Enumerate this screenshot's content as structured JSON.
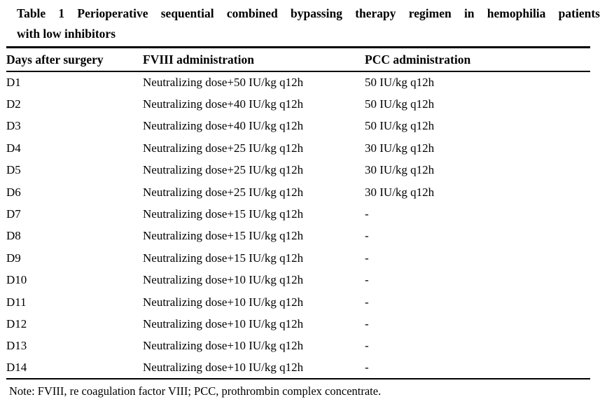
{
  "document": {
    "caption_line1": "Table 1 Perioperative sequential combined bypassing therapy regimen in hemophilia patients",
    "caption_line2": "with low inhibitors",
    "note": "Note: FVIII, re coagulation factor VIII; PCC, prothrombin complex concentrate."
  },
  "table": {
    "columns": [
      {
        "key": "day",
        "label": "Days after surgery"
      },
      {
        "key": "fviii",
        "label": "FVIII administration"
      },
      {
        "key": "pcc",
        "label": "PCC administration"
      }
    ],
    "rows": [
      {
        "day": "D1",
        "fviii": "Neutralizing dose+50 IU/kg q12h",
        "pcc": "50 IU/kg q12h"
      },
      {
        "day": "D2",
        "fviii": "Neutralizing dose+40 IU/kg q12h",
        "pcc": "50 IU/kg q12h"
      },
      {
        "day": "D3",
        "fviii": "Neutralizing dose+40 IU/kg q12h",
        "pcc": "50 IU/kg q12h"
      },
      {
        "day": "D4",
        "fviii": "Neutralizing dose+25 IU/kg q12h",
        "pcc": "30 IU/kg q12h"
      },
      {
        "day": "D5",
        "fviii": "Neutralizing dose+25 IU/kg q12h",
        "pcc": "30 IU/kg q12h"
      },
      {
        "day": "D6",
        "fviii": "Neutralizing dose+25 IU/kg q12h",
        "pcc": "30 IU/kg q12h"
      },
      {
        "day": "D7",
        "fviii": "Neutralizing dose+15 IU/kg q12h",
        "pcc": "-"
      },
      {
        "day": "D8",
        "fviii": "Neutralizing dose+15 IU/kg q12h",
        "pcc": "-"
      },
      {
        "day": "D9",
        "fviii": "Neutralizing dose+15 IU/kg q12h",
        "pcc": "-"
      },
      {
        "day": "D10",
        "fviii": "Neutralizing dose+10 IU/kg q12h",
        "pcc": "-"
      },
      {
        "day": "D11",
        "fviii": "Neutralizing dose+10 IU/kg q12h",
        "pcc": "-"
      },
      {
        "day": "D12",
        "fviii": "Neutralizing dose+10 IU/kg q12h",
        "pcc": "-"
      },
      {
        "day": "D13",
        "fviii": "Neutralizing dose+10 IU/kg q12h",
        "pcc": "-"
      },
      {
        "day": "D14",
        "fviii": "Neutralizing dose+10 IU/kg q12h",
        "pcc": "-"
      }
    ]
  },
  "colors": {
    "background": "#ffffff",
    "text": "#000000",
    "rule": "#000000"
  }
}
